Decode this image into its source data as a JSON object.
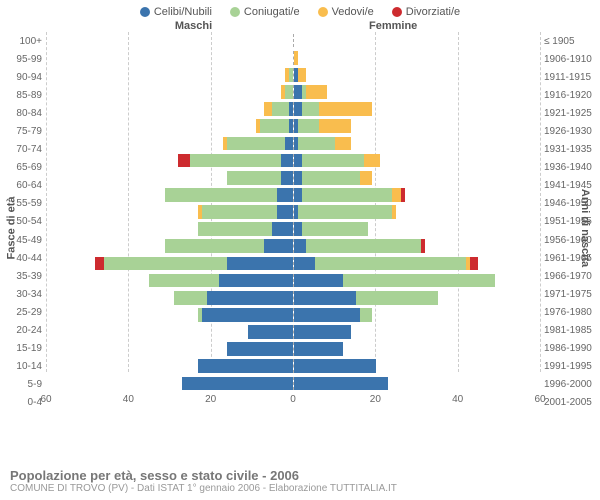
{
  "title": "Popolazione per età, sesso e stato civile - 2006",
  "subtitle": "COMUNE DI TROVO (PV) - Dati ISTAT 1° gennaio 2006 - Elaborazione TUTTITALIA.IT",
  "legend": [
    {
      "label": "Celibi/Nubili",
      "color": "#3b74ad"
    },
    {
      "label": "Coniugati/e",
      "color": "#a8d296"
    },
    {
      "label": "Vedovi/e",
      "color": "#f9bd4e"
    },
    {
      "label": "Divorziati/e",
      "color": "#cd2b2f"
    }
  ],
  "header_left": "Maschi",
  "header_right": "Femmine",
  "y_left_label": "Fasce di età",
  "y_right_label": "Anni di nascita",
  "xlim": 60,
  "xticks": [
    60,
    40,
    20,
    0,
    20,
    40,
    60
  ],
  "gridlines": [
    -60,
    -40,
    -20,
    20,
    40,
    60
  ],
  "colors": {
    "cel": "#3b74ad",
    "con": "#a8d296",
    "ved": "#f9bd4e",
    "div": "#cd2b2f",
    "grid": "#cccccc",
    "center": "#aaaaaa"
  },
  "rows": [
    {
      "age": "100+",
      "birth": "≤ 1905",
      "m": {
        "cel": 0,
        "con": 0,
        "ved": 0,
        "div": 0
      },
      "f": {
        "cel": 0,
        "con": 0,
        "ved": 0,
        "div": 0
      }
    },
    {
      "age": "95-99",
      "birth": "1906-1910",
      "m": {
        "cel": 0,
        "con": 0,
        "ved": 0,
        "div": 0
      },
      "f": {
        "cel": 0,
        "con": 0,
        "ved": 1,
        "div": 0
      }
    },
    {
      "age": "90-94",
      "birth": "1911-1915",
      "m": {
        "cel": 0,
        "con": 1,
        "ved": 1,
        "div": 0
      },
      "f": {
        "cel": 1,
        "con": 0,
        "ved": 2,
        "div": 0
      }
    },
    {
      "age": "85-89",
      "birth": "1916-1920",
      "m": {
        "cel": 0,
        "con": 2,
        "ved": 1,
        "div": 0
      },
      "f": {
        "cel": 2,
        "con": 1,
        "ved": 5,
        "div": 0
      }
    },
    {
      "age": "80-84",
      "birth": "1921-1925",
      "m": {
        "cel": 1,
        "con": 4,
        "ved": 2,
        "div": 0
      },
      "f": {
        "cel": 2,
        "con": 4,
        "ved": 13,
        "div": 0
      }
    },
    {
      "age": "75-79",
      "birth": "1926-1930",
      "m": {
        "cel": 1,
        "con": 7,
        "ved": 1,
        "div": 0
      },
      "f": {
        "cel": 1,
        "con": 5,
        "ved": 8,
        "div": 0
      }
    },
    {
      "age": "70-74",
      "birth": "1931-1935",
      "m": {
        "cel": 2,
        "con": 14,
        "ved": 1,
        "div": 0
      },
      "f": {
        "cel": 1,
        "con": 9,
        "ved": 4,
        "div": 0
      }
    },
    {
      "age": "65-69",
      "birth": "1936-1940",
      "m": {
        "cel": 3,
        "con": 22,
        "ved": 0,
        "div": 3
      },
      "f": {
        "cel": 2,
        "con": 15,
        "ved": 4,
        "div": 0
      }
    },
    {
      "age": "60-64",
      "birth": "1941-1945",
      "m": {
        "cel": 3,
        "con": 13,
        "ved": 0,
        "div": 0
      },
      "f": {
        "cel": 2,
        "con": 14,
        "ved": 3,
        "div": 0
      }
    },
    {
      "age": "55-59",
      "birth": "1946-1950",
      "m": {
        "cel": 4,
        "con": 27,
        "ved": 0,
        "div": 0
      },
      "f": {
        "cel": 2,
        "con": 22,
        "ved": 2,
        "div": 1
      }
    },
    {
      "age": "50-54",
      "birth": "1951-1955",
      "m": {
        "cel": 4,
        "con": 18,
        "ved": 1,
        "div": 0
      },
      "f": {
        "cel": 1,
        "con": 23,
        "ved": 1,
        "div": 0
      }
    },
    {
      "age": "45-49",
      "birth": "1956-1960",
      "m": {
        "cel": 5,
        "con": 18,
        "ved": 0,
        "div": 0
      },
      "f": {
        "cel": 2,
        "con": 16,
        "ved": 0,
        "div": 0
      }
    },
    {
      "age": "40-44",
      "birth": "1961-1965",
      "m": {
        "cel": 7,
        "con": 24,
        "ved": 0,
        "div": 0
      },
      "f": {
        "cel": 3,
        "con": 28,
        "ved": 0,
        "div": 1
      }
    },
    {
      "age": "35-39",
      "birth": "1966-1970",
      "m": {
        "cel": 16,
        "con": 30,
        "ved": 0,
        "div": 2
      },
      "f": {
        "cel": 5,
        "con": 37,
        "ved": 1,
        "div": 2
      }
    },
    {
      "age": "30-34",
      "birth": "1971-1975",
      "m": {
        "cel": 18,
        "con": 17,
        "ved": 0,
        "div": 0
      },
      "f": {
        "cel": 12,
        "con": 37,
        "ved": 0,
        "div": 0
      }
    },
    {
      "age": "25-29",
      "birth": "1976-1980",
      "m": {
        "cel": 21,
        "con": 8,
        "ved": 0,
        "div": 0
      },
      "f": {
        "cel": 15,
        "con": 20,
        "ved": 0,
        "div": 0
      }
    },
    {
      "age": "20-24",
      "birth": "1981-1985",
      "m": {
        "cel": 22,
        "con": 1,
        "ved": 0,
        "div": 0
      },
      "f": {
        "cel": 16,
        "con": 3,
        "ved": 0,
        "div": 0
      }
    },
    {
      "age": "15-19",
      "birth": "1986-1990",
      "m": {
        "cel": 11,
        "con": 0,
        "ved": 0,
        "div": 0
      },
      "f": {
        "cel": 14,
        "con": 0,
        "ved": 0,
        "div": 0
      }
    },
    {
      "age": "10-14",
      "birth": "1991-1995",
      "m": {
        "cel": 16,
        "con": 0,
        "ved": 0,
        "div": 0
      },
      "f": {
        "cel": 12,
        "con": 0,
        "ved": 0,
        "div": 0
      }
    },
    {
      "age": "5-9",
      "birth": "1996-2000",
      "m": {
        "cel": 23,
        "con": 0,
        "ved": 0,
        "div": 0
      },
      "f": {
        "cel": 20,
        "con": 0,
        "ved": 0,
        "div": 0
      }
    },
    {
      "age": "0-4",
      "birth": "2001-2005",
      "m": {
        "cel": 27,
        "con": 0,
        "ved": 0,
        "div": 0
      },
      "f": {
        "cel": 23,
        "con": 0,
        "ved": 0,
        "div": 0
      }
    }
  ]
}
